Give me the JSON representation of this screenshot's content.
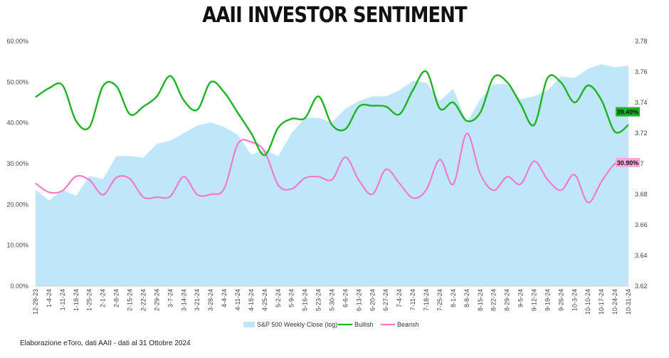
{
  "title": "AAII INVESTOR SENTIMENT",
  "source_note": "Elaborazione eToro, dati AAII - dati al 31 Ottobre 2024",
  "colors": {
    "sp500_area": "#bfe6f9",
    "bullish": "#1db324",
    "bearish": "#f47bc8",
    "bullish_badge": "#1db324",
    "bearish_badge": "#f7a8d9"
  },
  "chart_data": {
    "type": "line",
    "title": "AAII INVESTOR SENTIMENT",
    "categories": [
      "12-28-23",
      "1-4-24",
      "1-11-24",
      "1-18-24",
      "1-25-24",
      "2-1-24",
      "2-8-24",
      "2-15-24",
      "2-22-24",
      "2-29-24",
      "3-7-24",
      "3-14-24",
      "3-21-24",
      "3-28-24",
      "4-4-24",
      "4-11-24",
      "4-18-24",
      "4-25-24",
      "5-2-24",
      "5-9-24",
      "5-16-24",
      "5-23-24",
      "5-30-24",
      "6-6-24",
      "6-13-24",
      "6-20-24",
      "6-27-24",
      "7-4-24",
      "7-11-24",
      "7-18-24",
      "7-25-24",
      "8-1-24",
      "8-8-24",
      "8-15-24",
      "8-22-24",
      "8-29-24",
      "9-5-24",
      "9-12-24",
      "9-19-24",
      "9-26-24",
      "10-3-24",
      "10-10-24",
      "10-17-24",
      "10-24-24",
      "10-31-24"
    ],
    "y_left": {
      "ticks": [
        "0.00%",
        "10.00%",
        "20.00%",
        "30.00%",
        "40.00%",
        "50.00%",
        "60.00%"
      ],
      "ylim": [
        0,
        60
      ]
    },
    "y_right": {
      "ticks": [
        "3.62",
        "3.64",
        "3.66",
        "3.68",
        "3.7",
        "3.72",
        "3.74",
        "3.76",
        "3.78"
      ],
      "ylim": [
        3.62,
        3.78
      ]
    },
    "series": [
      {
        "name": "S&P 500 Weekly Close (log)",
        "kind": "area",
        "axis": "right",
        "values": [
          3.683,
          3.676,
          3.683,
          3.679,
          3.692,
          3.69,
          3.705,
          3.705,
          3.704,
          3.713,
          3.715,
          3.72,
          3.725,
          3.727,
          3.724,
          3.719,
          3.706,
          3.709,
          3.705,
          3.72,
          3.73,
          3.73,
          3.727,
          3.736,
          3.741,
          3.744,
          3.744,
          3.748,
          3.754,
          3.753,
          3.741,
          3.749,
          3.727,
          3.742,
          3.752,
          3.752,
          3.742,
          3.744,
          3.748,
          3.757,
          3.756,
          3.762,
          3.765,
          3.763,
          3.764
        ]
      },
      {
        "name": "Bullish",
        "kind": "line",
        "axis": "left",
        "values": [
          46.3,
          48.5,
          49.2,
          40.5,
          39.0,
          49.0,
          49.0,
          42.1,
          44.0,
          46.5,
          51.5,
          45.5,
          43.2,
          50.0,
          47.5,
          42.5,
          37.5,
          32.1,
          38.8,
          41.0,
          41.2,
          46.5,
          39.5,
          38.5,
          44.0,
          44.2,
          44.0,
          42.1,
          48.0,
          52.6,
          43.5,
          45.0,
          40.5,
          42.5,
          51.2,
          50.0,
          44.6,
          39.5,
          51.0,
          49.9,
          45.0,
          49.2,
          45.6,
          37.8,
          39.5
        ]
      },
      {
        "name": "Bearish",
        "kind": "line",
        "axis": "left",
        "values": [
          25.2,
          23.0,
          23.4,
          26.9,
          26.0,
          22.4,
          26.6,
          26.3,
          21.8,
          21.8,
          22.0,
          26.8,
          22.4,
          22.5,
          23.9,
          34.8,
          35.3,
          33.0,
          24.8,
          23.8,
          26.5,
          26.8,
          26.1,
          31.6,
          25.9,
          22.5,
          28.6,
          25.2,
          21.6,
          23.6,
          31.0,
          25.0,
          37.4,
          27.5,
          23.5,
          26.8,
          25.0,
          30.6,
          26.1,
          23.5,
          27.3,
          20.5,
          25.6,
          30.0,
          30.9
        ]
      }
    ],
    "end_labels": {
      "bullish": "39.49%",
      "bearish": "30.90%"
    },
    "legend_position": "bottom",
    "grid": false
  }
}
